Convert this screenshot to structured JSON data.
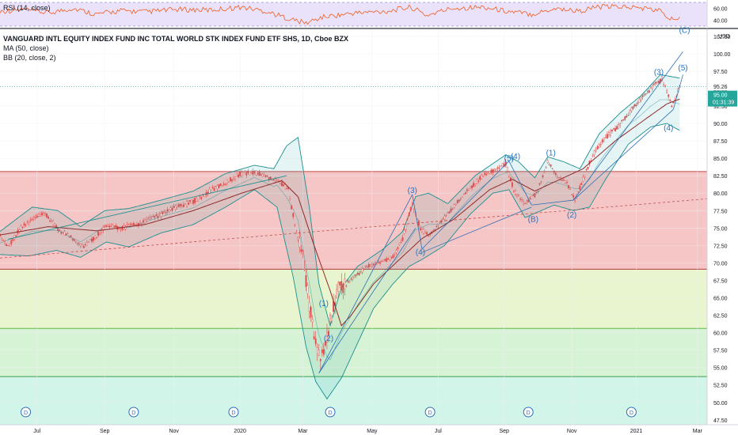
{
  "chart_data": {
    "type": "line",
    "title": "VANGUARD INTL EQUITY INDEX FUND INC TOTAL WORLD STK INDEX FUND ETF SHS, 1D, Cboe BZX",
    "indicators": [
      "MA (50, close)",
      "BB (20, close, 2)"
    ],
    "rsi_label": "RSI (14, close)",
    "rsi_ticks": [
      "60.00",
      "40.00"
    ],
    "currency": "USD",
    "last_price": "95.26",
    "countdown": "01:31:39",
    "y_ticks": [
      "102.50",
      "100.00",
      "97.50",
      "95.00",
      "92.50",
      "90.00",
      "87.50",
      "85.00",
      "82.50",
      "80.00",
      "77.50",
      "75.00",
      "72.50",
      "70.00",
      "67.50",
      "65.00",
      "62.50",
      "60.00",
      "57.50",
      "55.00",
      "52.50",
      "50.00",
      "47.50"
    ],
    "ylim": [
      46.8,
      103.5
    ],
    "x_labels": [
      "Jul",
      "Sep",
      "Nov",
      "2020",
      "Mar",
      "May",
      "Jul",
      "Sep",
      "Nov",
      "2021",
      "Mar"
    ],
    "x_label_index": [
      23,
      65,
      108,
      149,
      188,
      231,
      272,
      313,
      355,
      395,
      433
    ],
    "x_range": [
      0,
      439
    ],
    "price": {
      "keys": [
        [
          0,
          73.8
        ],
        [
          5,
          72.4
        ],
        [
          12,
          74.8
        ],
        [
          20,
          76.2
        ],
        [
          28,
          77.0
        ],
        [
          36,
          74.8
        ],
        [
          45,
          73.6
        ],
        [
          52,
          72.4
        ],
        [
          58,
          73.5
        ],
        [
          65,
          75.2
        ],
        [
          74,
          75.0
        ],
        [
          85,
          75.5
        ],
        [
          96,
          76.5
        ],
        [
          108,
          77.8
        ],
        [
          120,
          78.8
        ],
        [
          132,
          80.5
        ],
        [
          140,
          81.5
        ],
        [
          149,
          82.8
        ],
        [
          158,
          83.0
        ],
        [
          166,
          82.3
        ],
        [
          172,
          82.0
        ],
        [
          179,
          80.5
        ],
        [
          184,
          74.5
        ],
        [
          188,
          71.0
        ],
        [
          192,
          64.0
        ],
        [
          196,
          58.5
        ],
        [
          199,
          56.0
        ],
        [
          202,
          58.5
        ],
        [
          206,
          62.5
        ],
        [
          210,
          66.5
        ],
        [
          215,
          67.0
        ],
        [
          220,
          68.0
        ],
        [
          228,
          69.5
        ],
        [
          236,
          70.0
        ],
        [
          244,
          71.0
        ],
        [
          250,
          73.5
        ],
        [
          256,
          78.5
        ],
        [
          261,
          75.0
        ],
        [
          266,
          73.8
        ],
        [
          272,
          75.5
        ],
        [
          280,
          77.5
        ],
        [
          290,
          80.5
        ],
        [
          300,
          82.5
        ],
        [
          308,
          83.5
        ],
        [
          314,
          84.2
        ],
        [
          319,
          80.5
        ],
        [
          326,
          78.3
        ],
        [
          333,
          80.0
        ],
        [
          340,
          84.5
        ],
        [
          346,
          82.5
        ],
        [
          352,
          81.5
        ],
        [
          357,
          79.0
        ],
        [
          362,
          82.0
        ],
        [
          368,
          85.5
        ],
        [
          376,
          88.0
        ],
        [
          384,
          89.5
        ],
        [
          392,
          92.0
        ],
        [
          398,
          93.5
        ],
        [
          406,
          95.5
        ],
        [
          411,
          96.3
        ],
        [
          414,
          94.5
        ],
        [
          417,
          92.5
        ],
        [
          420,
          94.0
        ],
        [
          422,
          95.3
        ]
      ]
    },
    "moving_average": {
      "keys": [
        [
          0,
          74.0
        ],
        [
          30,
          75.2
        ],
        [
          60,
          74.6
        ],
        [
          90,
          75.5
        ],
        [
          120,
          77.5
        ],
        [
          150,
          80.0
        ],
        [
          175,
          81.8
        ],
        [
          185,
          79.5
        ],
        [
          195,
          72.5
        ],
        [
          205,
          66.0
        ],
        [
          212,
          61.0
        ],
        [
          218,
          62.5
        ],
        [
          232,
          67.0
        ],
        [
          248,
          70.5
        ],
        [
          262,
          73.5
        ],
        [
          282,
          76.3
        ],
        [
          304,
          80.5
        ],
        [
          318,
          82.0
        ],
        [
          332,
          80.3
        ],
        [
          346,
          81.8
        ],
        [
          362,
          83.5
        ],
        [
          382,
          87.5
        ],
        [
          400,
          90.5
        ],
        [
          414,
          92.8
        ],
        [
          422,
          93.5
        ]
      ]
    },
    "bollinger_upper": {
      "keys": [
        [
          0,
          74.5
        ],
        [
          20,
          78.0
        ],
        [
          36,
          77.5
        ],
        [
          50,
          75.2
        ],
        [
          65,
          77.5
        ],
        [
          80,
          77.8
        ],
        [
          100,
          79.0
        ],
        [
          120,
          80.3
        ],
        [
          140,
          82.8
        ],
        [
          158,
          84.0
        ],
        [
          170,
          83.5
        ],
        [
          178,
          86.8
        ],
        [
          185,
          88.0
        ],
        [
          192,
          78.0
        ],
        [
          198,
          67.0
        ],
        [
          205,
          61.0
        ],
        [
          212,
          66.5
        ],
        [
          222,
          69.5
        ],
        [
          238,
          72.0
        ],
        [
          250,
          74.5
        ],
        [
          258,
          79.5
        ],
        [
          266,
          80.0
        ],
        [
          278,
          78.5
        ],
        [
          295,
          82.5
        ],
        [
          314,
          85.5
        ],
        [
          322,
          84.5
        ],
        [
          332,
          82.2
        ],
        [
          340,
          85.2
        ],
        [
          350,
          84.5
        ],
        [
          360,
          83.5
        ],
        [
          372,
          88.5
        ],
        [
          385,
          91.5
        ],
        [
          398,
          94.0
        ],
        [
          410,
          97.0
        ],
        [
          422,
          96.5
        ]
      ]
    },
    "bollinger_lower": {
      "keys": [
        [
          0,
          71.2
        ],
        [
          18,
          71.0
        ],
        [
          35,
          71.8
        ],
        [
          50,
          70.8
        ],
        [
          66,
          73.0
        ],
        [
          80,
          72.3
        ],
        [
          100,
          74.3
        ],
        [
          120,
          75.5
        ],
        [
          140,
          78.0
        ],
        [
          158,
          80.5
        ],
        [
          172,
          78.0
        ],
        [
          182,
          68.0
        ],
        [
          190,
          58.0
        ],
        [
          196,
          53.0
        ],
        [
          203,
          50.5
        ],
        [
          212,
          53.5
        ],
        [
          222,
          58.5
        ],
        [
          232,
          63.5
        ],
        [
          244,
          67.0
        ],
        [
          254,
          69.5
        ],
        [
          262,
          70.5
        ],
        [
          276,
          72.5
        ],
        [
          292,
          77.0
        ],
        [
          306,
          80.0
        ],
        [
          316,
          80.5
        ],
        [
          326,
          76.5
        ],
        [
          333,
          77.2
        ],
        [
          344,
          78.3
        ],
        [
          356,
          77.5
        ],
        [
          366,
          78.0
        ],
        [
          376,
          82.0
        ],
        [
          390,
          87.0
        ],
        [
          404,
          89.5
        ],
        [
          414,
          90.0
        ],
        [
          422,
          89.0
        ]
      ]
    },
    "rsi": {
      "keys": [
        [
          0,
          55
        ],
        [
          15,
          58
        ],
        [
          30,
          52
        ],
        [
          45,
          60
        ],
        [
          60,
          50
        ],
        [
          75,
          56
        ],
        [
          90,
          54
        ],
        [
          110,
          58
        ],
        [
          130,
          57
        ],
        [
          150,
          62
        ],
        [
          165,
          55
        ],
        [
          180,
          42
        ],
        [
          190,
          35
        ],
        [
          200,
          45
        ],
        [
          220,
          52
        ],
        [
          240,
          55
        ],
        [
          255,
          62
        ],
        [
          265,
          48
        ],
        [
          280,
          60
        ],
        [
          300,
          62
        ],
        [
          315,
          55
        ],
        [
          330,
          50
        ],
        [
          345,
          60
        ],
        [
          360,
          55
        ],
        [
          370,
          62
        ],
        [
          385,
          63
        ],
        [
          400,
          60
        ],
        [
          410,
          56
        ],
        [
          414,
          45
        ],
        [
          418,
          40
        ],
        [
          422,
          48
        ]
      ]
    },
    "wave_labels": [
      {
        "text": "(1)",
        "i": 201,
        "p": 63.8
      },
      {
        "text": "(2)",
        "i": 204,
        "p": 58.8
      },
      {
        "text": "(3)",
        "i": 256,
        "p": 80.0
      },
      {
        "text": "(4)",
        "i": 261,
        "p": 71.2
      },
      {
        "text": "(5)",
        "i": 316,
        "p": 84.6
      },
      {
        "text": "(4)",
        "i": 320,
        "p": 84.9
      },
      {
        "text": "(1)",
        "i": 342,
        "p": 85.4
      },
      {
        "text": "(B)",
        "i": 331,
        "p": 75.9
      },
      {
        "text": "(2)",
        "i": 355,
        "p": 76.5
      },
      {
        "text": "(3)",
        "i": 409,
        "p": 97.0
      },
      {
        "text": "(5)",
        "i": 424,
        "p": 97.6
      },
      {
        "text": "(4)",
        "i": 415,
        "p": 89.0
      },
      {
        "text": "(C)",
        "i": 425,
        "p": 103.0
      }
    ],
    "dividend_markers": {
      "label": "D",
      "index": [
        16,
        83,
        145,
        205,
        267,
        328,
        392
      ]
    },
    "zones": [
      {
        "from": 69.1,
        "to": 83.1,
        "color": "#f4b6b6"
      },
      {
        "from": 60.6,
        "to": 69.1,
        "color": "#e3f3c3"
      },
      {
        "from": 53.7,
        "to": 60.6,
        "color": "#cdf0cb"
      },
      {
        "from": 46.8,
        "to": 53.7,
        "color": "#c6f2e2"
      }
    ],
    "colors": {
      "candle": "#d84b4b",
      "ma": "#8d2b2b",
      "bb": "#1b8f8f",
      "bb_fill": "#2aa5a5",
      "wave": "#1f73c4",
      "price_badge": "#26a69a",
      "rsi_line": "#f25c1e",
      "rsi_band": "#e9e2fa"
    }
  }
}
